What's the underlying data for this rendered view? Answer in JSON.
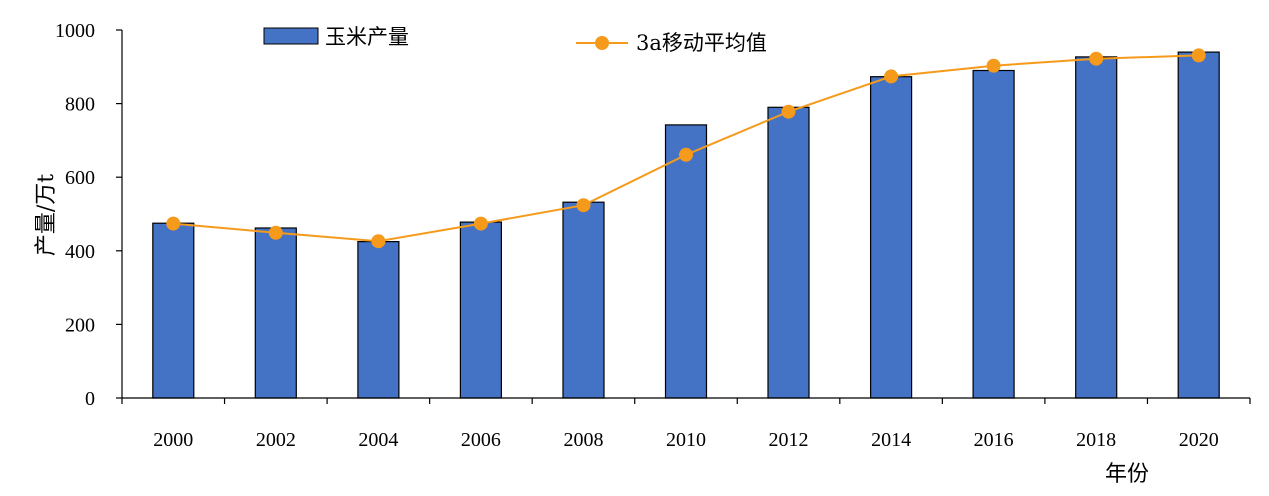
{
  "chart_data": {
    "type": "bar",
    "categories": [
      "2000",
      "2002",
      "2004",
      "2006",
      "2008",
      "2010",
      "2012",
      "2014",
      "2016",
      "2018",
      "2020"
    ],
    "series": [
      {
        "name": "玉米产量",
        "type": "bar",
        "values": [
          475,
          462,
          425,
          478,
          532,
          742,
          790,
          873,
          890,
          927,
          940
        ],
        "color": "#4472C4"
      },
      {
        "name": "3a移动平均值",
        "type": "line",
        "values": [
          474,
          449,
          426,
          474,
          524,
          661,
          778,
          874,
          903,
          922,
          931
        ],
        "color": "#F59A1B"
      }
    ],
    "xlabel": "年份",
    "ylabel": "产量/万t",
    "ylim": [
      0,
      1000
    ],
    "yticks": [
      0,
      200,
      400,
      600,
      800,
      1000
    ],
    "grid": false,
    "legend": "top"
  }
}
